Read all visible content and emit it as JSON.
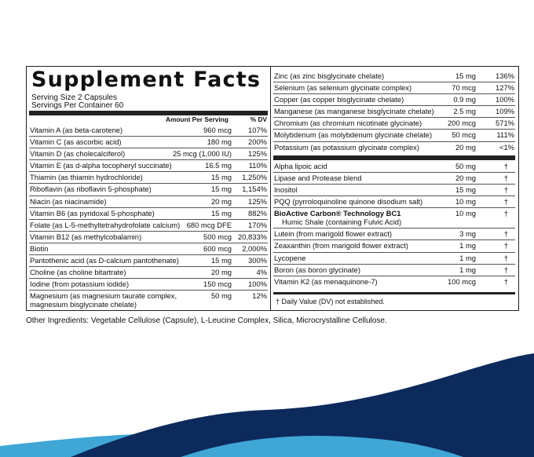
{
  "title": "Supplement Facts",
  "serving_size": "Serving Size 2 Capsules",
  "servings_per_container": "Servings Per Container 60",
  "columns": {
    "amount": "Amount Per Serving",
    "dv": "% DV"
  },
  "left_rows": [
    {
      "name": "Vitamin A (as beta-carotene)",
      "amount": "960 mcg",
      "dv": "107%"
    },
    {
      "name": "Vitamin C (as ascorbic acid)",
      "amount": "180 mg",
      "dv": "200%"
    },
    {
      "name": "Vitamin D (as cholecalciferol)",
      "amount": "25 mcg (1,000 IU)",
      "dv": "125%"
    },
    {
      "name": "Vitamin E (as d-alpha tocopheryl succinate)",
      "amount": "16.5 mg",
      "dv": "110%"
    },
    {
      "name": "Thiamin (as thiamin hydrochloride)",
      "amount": "15 mg",
      "dv": "1,250%"
    },
    {
      "name": "Riboflavin (as riboflavin 5-phosphate)",
      "amount": "15 mg",
      "dv": "1,154%"
    },
    {
      "name": "Niacin (as niacinamide)",
      "amount": "20 mg",
      "dv": "125%"
    },
    {
      "name": "Vitamin B6 (as pyridoxal 5-phosphate)",
      "amount": "15 mg",
      "dv": "882%"
    },
    {
      "name": "Folate (as L-5-methyltetrahydrofolate calcium)",
      "amount": "680 mcg DFE",
      "dv": "170%"
    },
    {
      "name": "Vitamin B12 (as methylcobalamin)",
      "amount": "500 mcg",
      "dv": "20,833%"
    },
    {
      "name": "Biotin",
      "amount": "600 mcg",
      "dv": "2,000%"
    },
    {
      "name": "Pantothenic acid (as D-calcium pantothenate)",
      "amount": "15 mg",
      "dv": "300%"
    },
    {
      "name": "Choline (as choline bitartrate)",
      "amount": "20 mg",
      "dv": "4%"
    },
    {
      "name": "Iodine (from potassium iodide)",
      "amount": "150 mcg",
      "dv": "100%"
    },
    {
      "name": "Magnesium (as magnesium taurate complex,\n  magnesium bisglycinate chelate)",
      "amount": "50 mg",
      "dv": "12%"
    }
  ],
  "right_minerals": [
    {
      "name": "Zinc (as zinc bisglycinate chelate)",
      "amount": "15 mg",
      "dv": "136%"
    },
    {
      "name": "Selenium (as selenium glycinate complex)",
      "amount": "70 mcg",
      "dv": "127%"
    },
    {
      "name": "Copper (as copper bisglycinate chelate)",
      "amount": "0.9 mg",
      "dv": "100%"
    },
    {
      "name": "Manganese (as manganese bisglycinate chelate)",
      "amount": "2.5 mg",
      "dv": "109%"
    },
    {
      "name": "Chromium (as chromium nicotinate glycinate)",
      "amount": "200 mcg",
      "dv": "571%"
    },
    {
      "name": "Molybdenum (as molybdenum glycinate chelate)",
      "amount": "50 mcg",
      "dv": "111%"
    },
    {
      "name": "Potassium (as potassium glycinate complex)",
      "amount": "20 mg",
      "dv": "<1%"
    }
  ],
  "right_others": [
    {
      "name": "Alpha lipoic acid",
      "amount": "50 mg",
      "dv": "†"
    },
    {
      "name": "Lipase and Protease blend",
      "amount": "20 mg",
      "dv": "†"
    },
    {
      "name": "Inositol",
      "amount": "15 mg",
      "dv": "†"
    },
    {
      "name": "PQQ (pyrroloquinoline quinone disodium salt)",
      "amount": "10 mg",
      "dv": "†"
    },
    {
      "name_bold": "BioActive Carbon® Technology BC1",
      "name_sub": "Humic Shale (containing Fulvic Acid)",
      "amount": "10 mg",
      "dv": "†"
    },
    {
      "name": "Lutein (from marigold flower extract)",
      "amount": "3 mg",
      "dv": "†"
    },
    {
      "name": "Zeaxanthin (from marigold flower extract)",
      "amount": "1 mg",
      "dv": "†"
    },
    {
      "name": "Lycopene",
      "amount": "1 mg",
      "dv": "†"
    },
    {
      "name": "Boron (as boron glycinate)",
      "amount": "1 mg",
      "dv": "†"
    },
    {
      "name": "Vitamin K2 (as menaquinone-7)",
      "amount": "100 mcg",
      "dv": "†"
    }
  ],
  "footnote": "† Daily Value (DV) not established.",
  "other_ingredients": "Other Ingredients: Vegetable Cellulose (Capsule), L-Leucine Complex, Silica, Microcrystalline Cellulose.",
  "colors": {
    "wave_dark": "#0d2a5c",
    "wave_light": "#3fa6d6",
    "border": "#222222"
  }
}
